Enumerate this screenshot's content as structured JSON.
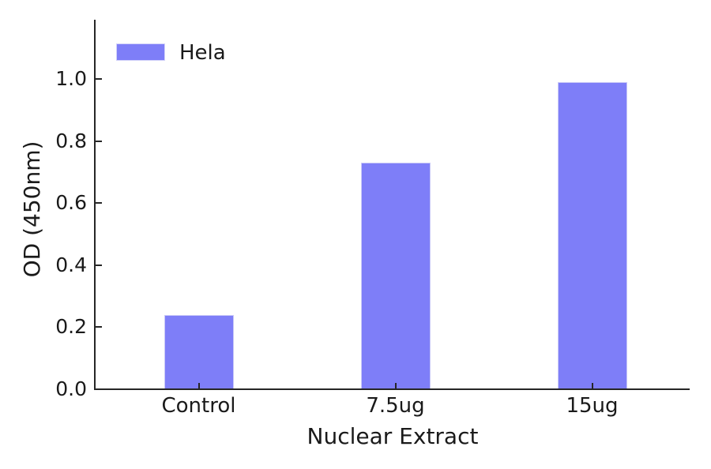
{
  "figure": {
    "background_color": "#ffffff",
    "text_color": "#1a1a1a",
    "spine_color": "#262626"
  },
  "chart_data": {
    "type": "bar",
    "title": "",
    "categories": [
      "Control",
      "7.5ug",
      "15ug"
    ],
    "series": [
      {
        "name": "Hela",
        "color": "#7e7ef8",
        "values": [
          0.24,
          0.73,
          0.99
        ]
      }
    ],
    "xlabel": "Nuclear Extract",
    "ylabel": "OD (450nm)",
    "yticks": [
      0.0,
      0.2,
      0.4,
      0.6,
      0.8,
      1.0
    ],
    "ytick_labels": [
      "0.0",
      "0.2",
      "0.4",
      "0.6",
      "0.8",
      "1.0"
    ],
    "ylim": [
      0,
      1.191
    ],
    "grid": false,
    "legend": {
      "position": "upper-left",
      "entries": [
        "Hela"
      ]
    }
  }
}
